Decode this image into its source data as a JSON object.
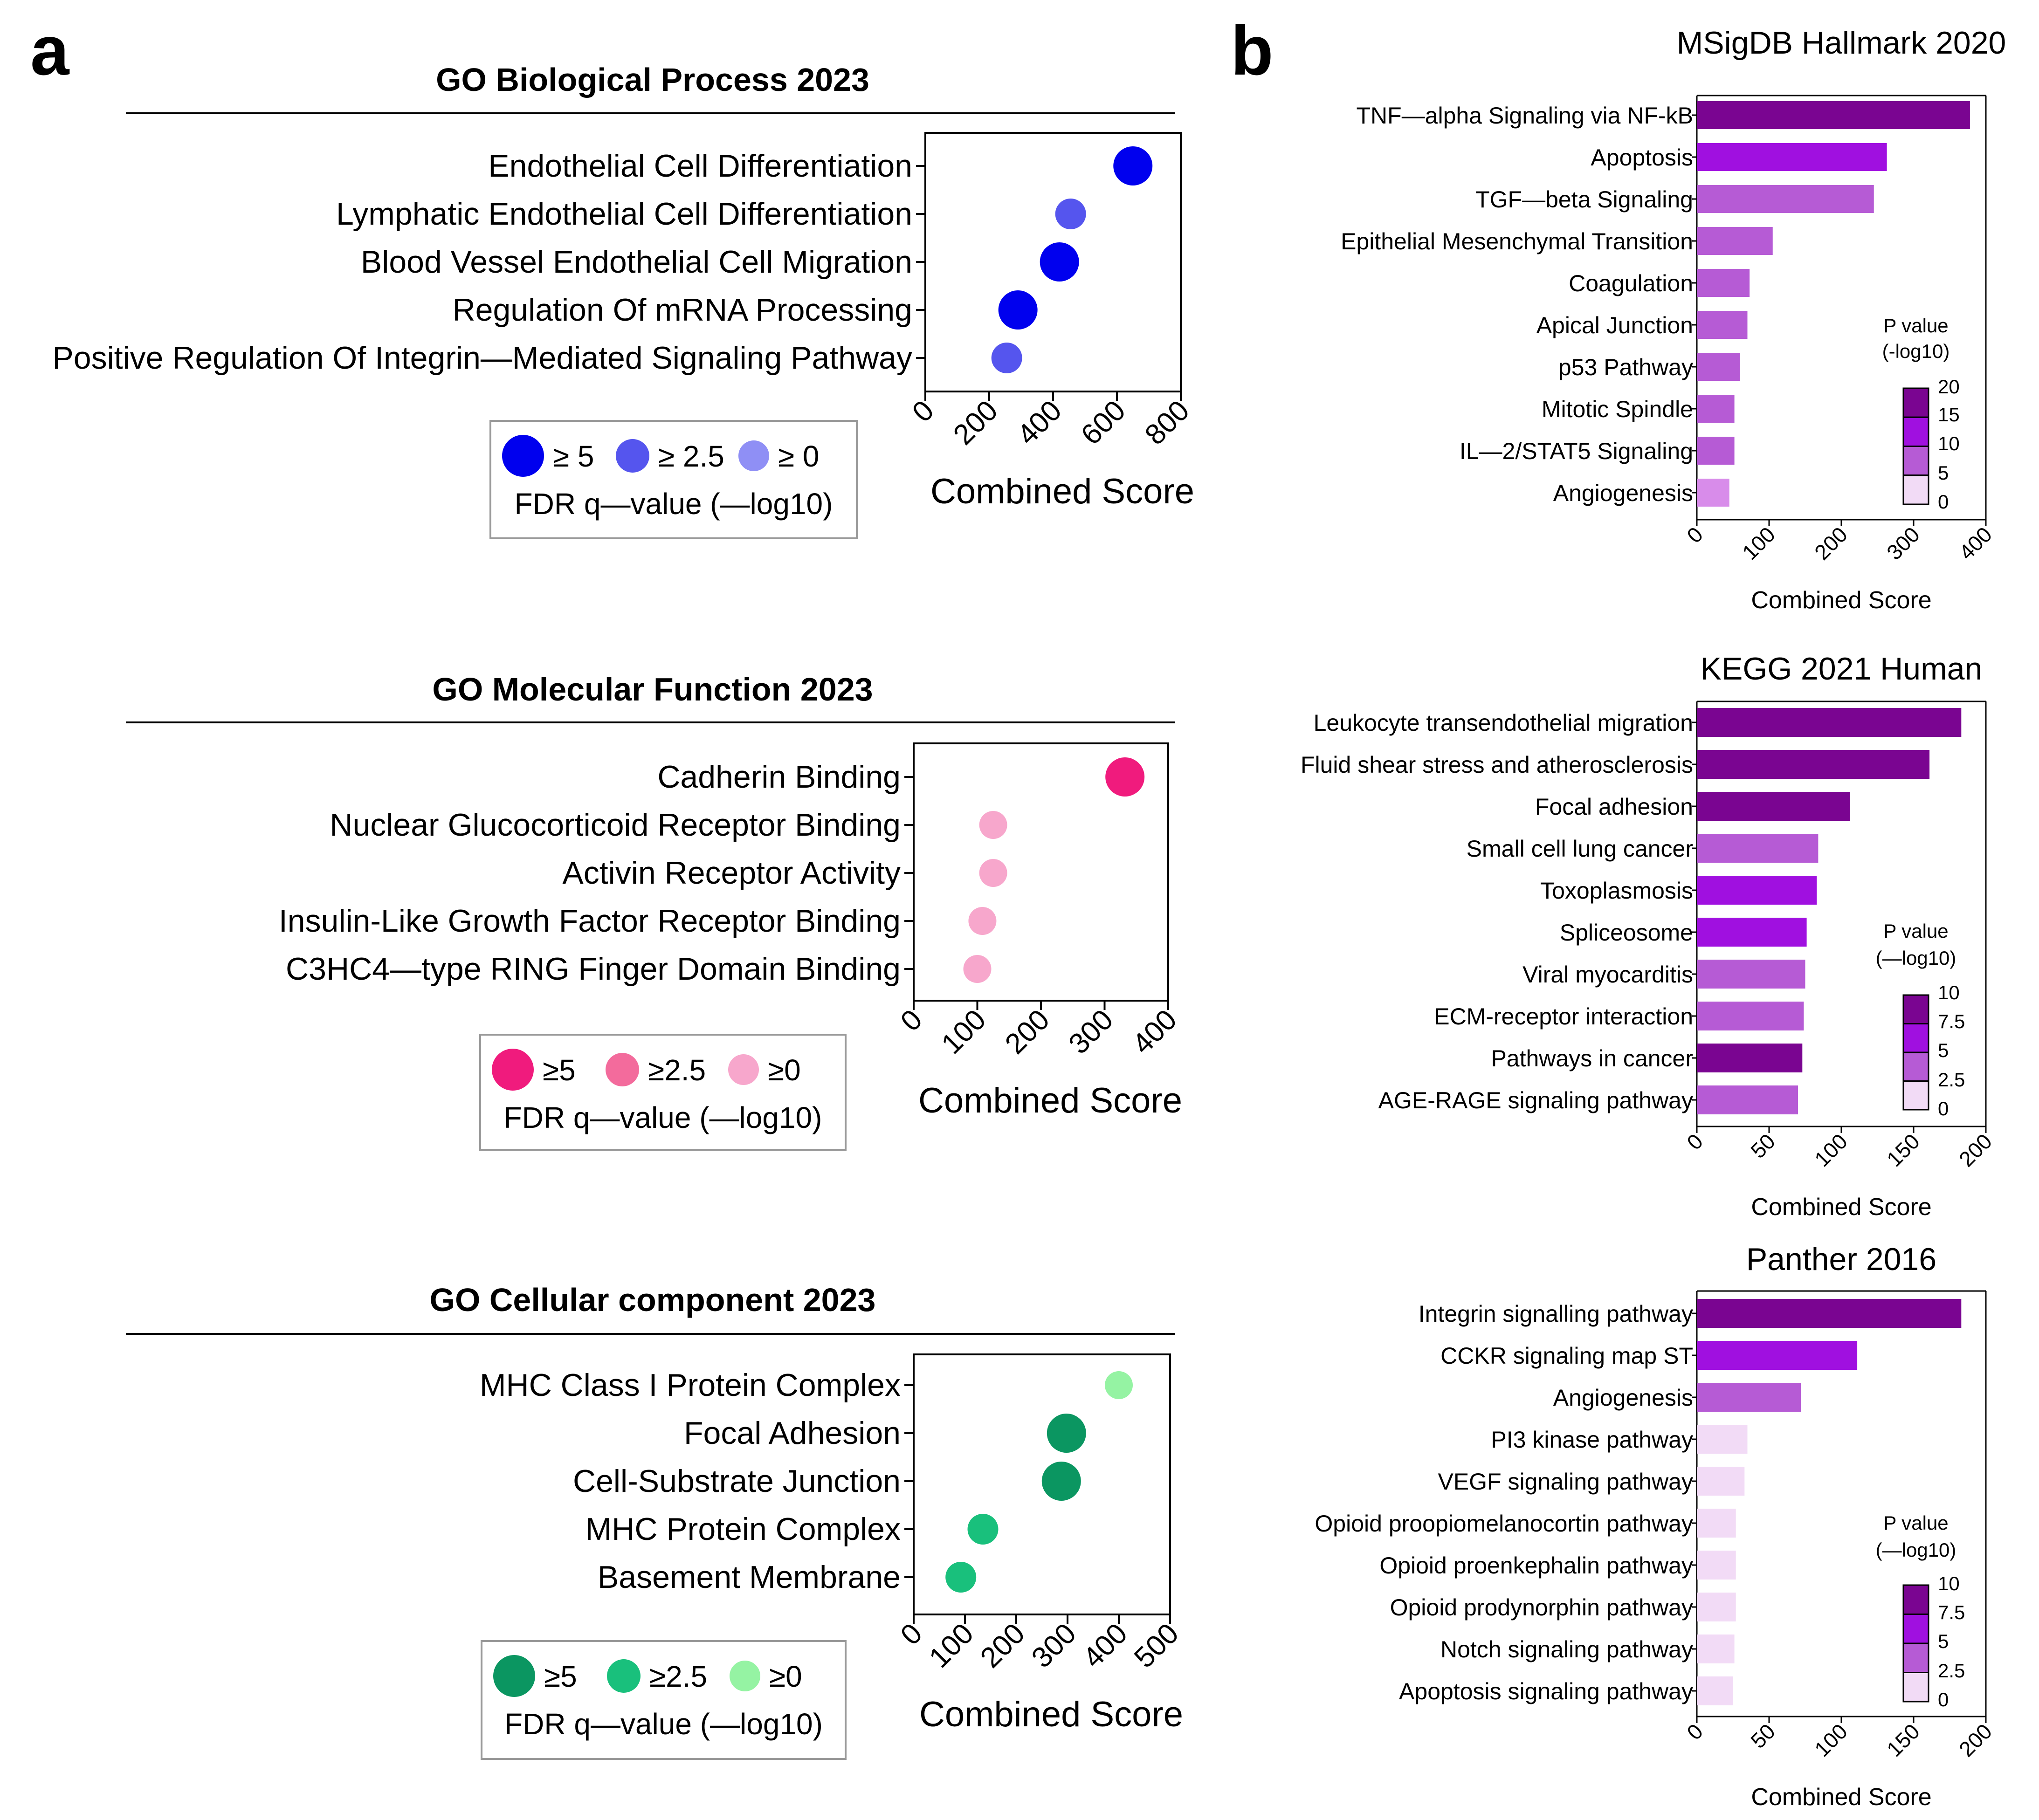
{
  "panel_labels": {
    "a": "a",
    "b": "b"
  },
  "colors": {
    "go_bp": [
      "#0000ee",
      "#5555ee",
      "#8f8ff5"
    ],
    "go_mf": [
      "#f01b7d",
      "#f36b9c",
      "#f7a7cc"
    ],
    "go_cc": [
      "#0b9661",
      "#19c07c",
      "#95f3a3"
    ],
    "purple_scale": [
      "#f2dbf6",
      "#d88cea",
      "#b65bd5",
      "#a010e0",
      "#7a0591"
    ]
  },
  "chart_data": [
    {
      "id": "go_bp",
      "type": "scatter",
      "title": "GO Biological Process 2023",
      "categories": [
        "Endothelial Cell Differentiation",
        "Lymphatic Endothelial Cell Differentiation",
        "Blood Vessel Endothelial Cell Migration",
        "Regulation Of mRNA Processing",
        "Positive Regulation Of Integrin—Mediated Signaling Pathway"
      ],
      "values": [
        650,
        455,
        420,
        290,
        255
      ],
      "fdr_level": [
        2,
        1,
        2,
        2,
        1
      ],
      "xlabel": "Combined Score",
      "xlim": [
        0,
        800
      ],
      "xticks": [
        "0",
        "200",
        "400",
        "600",
        "800"
      ],
      "legend": {
        "labels": [
          "≥ 5",
          "≥ 2.5",
          "≥ 0"
        ],
        "title": "FDR q—value (—log10)"
      }
    },
    {
      "id": "go_mf",
      "type": "scatter",
      "title": "GO Molecular Function 2023",
      "categories": [
        "Cadherin Binding",
        "Nuclear Glucocorticoid Receptor Binding",
        "Activin Receptor Activity",
        "Insulin-Like Growth Factor Receptor Binding",
        "C3HC4—type RING Finger Domain Binding"
      ],
      "values": [
        332,
        125,
        125,
        108,
        100
      ],
      "fdr_level": [
        2,
        0,
        0,
        0,
        0
      ],
      "xlabel": "Combined Score",
      "xlim": [
        0,
        400
      ],
      "xticks": [
        "0",
        "100",
        "200",
        "300",
        "400"
      ],
      "legend": {
        "labels": [
          "≥5",
          "≥2.5",
          "≥0"
        ],
        "title": "FDR q—value (—log10)"
      }
    },
    {
      "id": "go_cc",
      "type": "scatter",
      "title": "GO Cellular component 2023",
      "categories": [
        "MHC Class I Protein Complex",
        "Focal Adhesion",
        "Cell-Substrate Junction",
        "MHC Protein Complex",
        "Basement Membrane"
      ],
      "values": [
        400,
        298,
        288,
        135,
        92
      ],
      "fdr_level": [
        0,
        2,
        2,
        1,
        1
      ],
      "xlabel": "Combined Score",
      "xlim": [
        0,
        500
      ],
      "xticks": [
        "0",
        "100",
        "200",
        "300",
        "400",
        "500"
      ],
      "legend": {
        "labels": [
          "≥5",
          "≥2.5",
          "≥0"
        ],
        "title": "FDR q—value (—log10)"
      }
    },
    {
      "id": "msigdb",
      "type": "bar",
      "orientation": "horizontal",
      "title": "MSigDB Hallmark 2020",
      "categories": [
        "TNF—alpha Signaling via NF-kB",
        "Apoptosis",
        "TGF—beta Signaling",
        "Epithelial Mesenchymal Transition",
        "Coagulation",
        "Apical Junction",
        "p53 Pathway",
        "Mitotic Spindle",
        "IL—2/STAT5 Signaling",
        "Angiogenesis"
      ],
      "values": [
        378,
        263,
        245,
        105,
        73,
        70,
        60,
        52,
        52,
        45
      ],
      "color_level": [
        4,
        3,
        2,
        2,
        2,
        2,
        2,
        2,
        2,
        1
      ],
      "xlabel": "Combined Score",
      "xlim": [
        0,
        400
      ],
      "xticks": [
        "0",
        "100",
        "200",
        "300",
        "400"
      ],
      "colorbar": {
        "title": [
          "P value",
          "(-log10)"
        ],
        "ticks": [
          "20",
          "15",
          "10",
          "5",
          "0"
        ]
      }
    },
    {
      "id": "kegg",
      "type": "bar",
      "orientation": "horizontal",
      "title": "KEGG 2021 Human",
      "categories": [
        "Leukocyte transendothelial migration",
        "Fluid shear stress and atherosclerosis",
        "Focal adhesion",
        "Small cell lung cancer",
        "Toxoplasmosis",
        "Spliceosome",
        "Viral myocarditis",
        "ECM-receptor interaction",
        "Pathways in cancer",
        "AGE-RAGE signaling pathway"
      ],
      "values": [
        183,
        161,
        106,
        84,
        83,
        76,
        75,
        74,
        73,
        70
      ],
      "color_level": [
        4,
        4,
        4,
        2,
        3,
        3,
        2,
        2,
        4,
        2
      ],
      "xlabel": "Combined Score",
      "xlim": [
        0,
        200
      ],
      "xticks": [
        "0",
        "50",
        "100",
        "150",
        "200"
      ],
      "colorbar": {
        "title": [
          "P value",
          "(—log10)"
        ],
        "ticks": [
          "10",
          "7.5",
          "5",
          "2.5",
          "0"
        ]
      }
    },
    {
      "id": "panther",
      "type": "bar",
      "orientation": "horizontal",
      "title": "Panther 2016",
      "categories": [
        "Integrin signalling pathway",
        "CCKR signaling map ST",
        "Angiogenesis",
        "PI3 kinase pathway",
        "VEGF signaling pathway",
        "Opioid proopiomelanocortin pathway",
        "Opioid proenkephalin pathway",
        "Opioid prodynorphin pathway",
        "Notch signaling pathway",
        "Apoptosis signaling pathway"
      ],
      "values": [
        183,
        111,
        72,
        35,
        33,
        27,
        27,
        27,
        26,
        25
      ],
      "color_level": [
        4,
        3,
        2,
        0,
        0,
        0,
        0,
        0,
        0,
        0
      ],
      "xlabel": "Combined Score",
      "xlim": [
        0,
        200
      ],
      "xticks": [
        "0",
        "50",
        "100",
        "150",
        "200"
      ],
      "colorbar": {
        "title": [
          "P value",
          "(—log10)"
        ],
        "ticks": [
          "10",
          "7.5",
          "5",
          "2.5",
          "0"
        ]
      }
    }
  ]
}
